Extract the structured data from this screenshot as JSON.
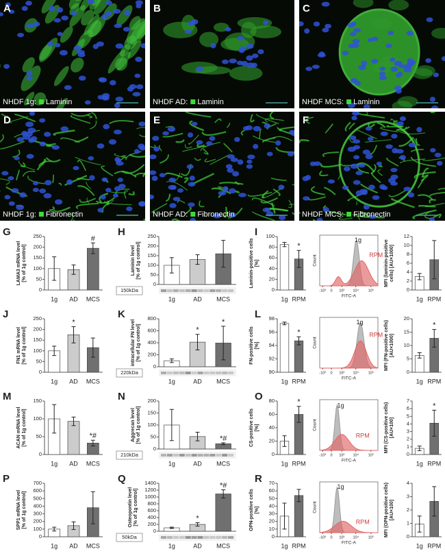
{
  "microscopy": [
    {
      "label": "A",
      "cell_line": "NHDF 1g:",
      "stain": "Laminin"
    },
    {
      "label": "B",
      "cell_line": "NHDF AD:",
      "stain": "Laminin"
    },
    {
      "label": "C",
      "cell_line": "NHDF MCS:",
      "stain": "Laminin"
    },
    {
      "label": "D",
      "cell_line": "NHDF 1g:",
      "stain": "Fibronectin"
    },
    {
      "label": "E",
      "cell_line": "NHDF AD:",
      "stain": "Fibronectin"
    },
    {
      "label": "F",
      "cell_line": "NHDF MCS:",
      "stain": "Fibronectin"
    }
  ],
  "chart_data": [
    {
      "type": "bar",
      "label": "G",
      "ylabel": [
        "LAMA3 mRNA level",
        "[% of 1g control]"
      ],
      "categories": [
        "1g",
        "AD",
        "MCS"
      ],
      "values": [
        100,
        95,
        195
      ],
      "errors": [
        55,
        22,
        25
      ],
      "marks": [
        null,
        null,
        "#"
      ],
      "colors": [
        "#ffffff",
        "#cccccc",
        "#707070"
      ],
      "ylim": [
        0,
        250
      ],
      "yticks": [
        0,
        50,
        100,
        150,
        200,
        250
      ]
    },
    {
      "type": "bar",
      "label": "H",
      "ylabel": [
        "Laminin level",
        "[% of 1g control]"
      ],
      "categories": [
        "1g",
        "AD",
        "MCS"
      ],
      "values": [
        100,
        130,
        160
      ],
      "errors": [
        40,
        25,
        70
      ],
      "marks": [
        null,
        null,
        null
      ],
      "colors": [
        "#ffffff",
        "#cccccc",
        "#707070"
      ],
      "ylim": [
        0,
        250
      ],
      "yticks": [
        0,
        50,
        100,
        150,
        200,
        250
      ],
      "blot_label": "150kDa"
    },
    {
      "type": "bar",
      "label": "I",
      "ylabel": [
        "Laminin-positive cells",
        "[%]"
      ],
      "categories": [
        "1g",
        "RPM"
      ],
      "values": [
        85,
        58
      ],
      "errors": [
        4,
        16
      ],
      "marks": [
        null,
        "*"
      ],
      "colors": [
        "#ffffff",
        "#707070"
      ],
      "ylim": [
        0,
        100
      ],
      "yticks": [
        0,
        20,
        40,
        60,
        80,
        100
      ]
    },
    {
      "type": "flow_histogram",
      "ylabel": "Count",
      "xlabel": "FITC-A",
      "xtick_labels": [
        "-10³",
        "0",
        "10³",
        "10⁴",
        "10⁵"
      ],
      "series": [
        {
          "name": "1g",
          "color": "#9a9a9a"
        },
        {
          "name": "RPM",
          "color": "#e06666"
        }
      ]
    },
    {
      "type": "bar",
      "ylabel": [
        "MFI (laminin-positive",
        "cells) [AU×1000]"
      ],
      "categories": [
        "1g",
        "RPM"
      ],
      "values": [
        3,
        6.8
      ],
      "errors": [
        0.7,
        4.3
      ],
      "marks": [
        null,
        null
      ],
      "colors": [
        "#ffffff",
        "#707070"
      ],
      "ylim": [
        0,
        12
      ],
      "yticks": [
        0,
        2,
        4,
        6,
        8,
        10,
        12
      ]
    },
    {
      "type": "bar",
      "label": "J",
      "ylabel": [
        "FN1 mRNA level",
        "[% of 1g control]"
      ],
      "categories": [
        "1g",
        "AD",
        "MCS"
      ],
      "values": [
        100,
        175,
        115
      ],
      "errors": [
        22,
        38,
        45
      ],
      "marks": [
        null,
        "*",
        null
      ],
      "colors": [
        "#ffffff",
        "#cccccc",
        "#707070"
      ],
      "ylim": [
        0,
        250
      ],
      "yticks": [
        0,
        50,
        100,
        150,
        200,
        250
      ]
    },
    {
      "type": "bar",
      "label": "K",
      "ylabel": [
        "intracellular FN level",
        "[% of 1g control]"
      ],
      "categories": [
        "1g",
        "AD",
        "MCS"
      ],
      "values": [
        100,
        410,
        395
      ],
      "errors": [
        30,
        130,
        280
      ],
      "marks": [
        null,
        "*",
        "*"
      ],
      "colors": [
        "#ffffff",
        "#cccccc",
        "#707070"
      ],
      "ylim": [
        0,
        800
      ],
      "yticks": [
        0,
        200,
        400,
        600,
        800
      ],
      "blot_label": "220kDa"
    },
    {
      "type": "bar",
      "label": "L",
      "ylabel": [
        "FN-positive cells",
        "[%]"
      ],
      "categories": [
        "1g",
        "RPM"
      ],
      "values": [
        97.3,
        94.7
      ],
      "errors": [
        0.2,
        0.6
      ],
      "marks": [
        null,
        "*"
      ],
      "colors": [
        "#ffffff",
        "#707070"
      ],
      "ylim": [
        90,
        98
      ],
      "yticks": [
        90,
        92,
        94,
        96,
        98
      ]
    },
    {
      "type": "flow_histogram",
      "ylabel": "Count",
      "xlabel": "FITC-A",
      "xtick_labels": [
        "-10³",
        "0",
        "10³",
        "10⁴",
        "10⁵"
      ],
      "series": [
        {
          "name": "1g",
          "color": "#9a9a9a"
        },
        {
          "name": "RPM",
          "color": "#e06666"
        }
      ]
    },
    {
      "type": "bar",
      "ylabel": [
        "MFI (FN-positive cells)",
        "[AU×1000]"
      ],
      "categories": [
        "1g",
        "RPM"
      ],
      "values": [
        6.3,
        12.7
      ],
      "errors": [
        1,
        3.3
      ],
      "marks": [
        null,
        "*"
      ],
      "colors": [
        "#ffffff",
        "#707070"
      ],
      "ylim": [
        0,
        20
      ],
      "yticks": [
        0,
        5,
        10,
        15,
        20
      ]
    },
    {
      "type": "bar",
      "label": "M",
      "ylabel": [
        "ACAN mRNA level",
        "[% of 1g control]"
      ],
      "categories": [
        "1g",
        "AD",
        "MCS"
      ],
      "values": [
        100,
        93,
        32
      ],
      "errors": [
        40,
        12,
        8
      ],
      "marks": [
        null,
        null,
        "*#"
      ],
      "colors": [
        "#ffffff",
        "#cccccc",
        "#707070"
      ],
      "ylim": [
        0,
        150
      ],
      "yticks": [
        0,
        50,
        100,
        150
      ]
    },
    {
      "type": "bar",
      "label": "N",
      "ylabel": [
        "Aggrecan level",
        "[% of 1g control]"
      ],
      "categories": [
        "1g",
        "AD",
        "MCS"
      ],
      "values": [
        100,
        52,
        22
      ],
      "errors": [
        65,
        18,
        4
      ],
      "marks": [
        null,
        null,
        "*#"
      ],
      "colors": [
        "#ffffff",
        "#cccccc",
        "#707070"
      ],
      "ylim": [
        0,
        200
      ],
      "yticks": [
        0,
        50,
        100,
        150,
        200
      ],
      "blot_label": "210kDa"
    },
    {
      "type": "bar",
      "label": "O",
      "ylabel": [
        "CS-positive cells",
        "[%]"
      ],
      "categories": [
        "1g",
        "RPM"
      ],
      "values": [
        20,
        60
      ],
      "errors": [
        8,
        12
      ],
      "marks": [
        null,
        "*"
      ],
      "colors": [
        "#ffffff",
        "#707070"
      ],
      "ylim": [
        0,
        80
      ],
      "yticks": [
        0,
        20,
        40,
        60,
        80
      ]
    },
    {
      "type": "flow_histogram",
      "ylabel": "Count",
      "xlabel": "FITC-A",
      "xtick_labels": [
        "-10³",
        "0",
        "10³",
        "10⁴",
        "10⁵"
      ],
      "series": [
        {
          "name": "1g",
          "color": "#9a9a9a"
        },
        {
          "name": "RPM",
          "color": "#e06666"
        }
      ]
    },
    {
      "type": "bar",
      "ylabel": [
        "MFI (CS-positive cells)",
        "[AU×100]"
      ],
      "categories": [
        "1g",
        "RPM"
      ],
      "values": [
        0.8,
        4.1
      ],
      "errors": [
        0.3,
        1.7
      ],
      "marks": [
        null,
        "*"
      ],
      "colors": [
        "#ffffff",
        "#707070"
      ],
      "ylim": [
        0,
        7
      ],
      "yticks": [
        0,
        1,
        2,
        3,
        4,
        5,
        6,
        7
      ]
    },
    {
      "type": "bar",
      "label": "P",
      "ylabel": [
        "SPP1 mRNA level",
        "[% of 1g control]"
      ],
      "categories": [
        "1g",
        "AD",
        "MCS"
      ],
      "values": [
        100,
        145,
        380
      ],
      "errors": [
        25,
        50,
        210
      ],
      "marks": [
        null,
        null,
        null
      ],
      "colors": [
        "#ffffff",
        "#cccccc",
        "#707070"
      ],
      "ylim": [
        0,
        700
      ],
      "yticks": [
        0,
        100,
        200,
        300,
        400,
        500,
        600,
        700
      ]
    },
    {
      "type": "bar",
      "label": "Q",
      "ylabel": [
        "Osteopontin level",
        "[% of 1g control]"
      ],
      "categories": [
        "1g",
        "AD",
        "MCS"
      ],
      "values": [
        100,
        200,
        1090
      ],
      "errors": [
        20,
        50,
        120
      ],
      "marks": [
        null,
        "*",
        "*#"
      ],
      "colors": [
        "#ffffff",
        "#cccccc",
        "#707070"
      ],
      "ylim": [
        0,
        1400
      ],
      "yticks": [
        0,
        200,
        400,
        600,
        800,
        1000,
        1200,
        1400
      ],
      "blot_label": "50kDa"
    },
    {
      "type": "bar",
      "label": "R",
      "ylabel": [
        "OPN-positive cells",
        "[%]"
      ],
      "categories": [
        "1g",
        "RPM"
      ],
      "values": [
        27,
        54
      ],
      "errors": [
        17,
        8
      ],
      "marks": [
        null,
        null
      ],
      "colors": [
        "#ffffff",
        "#707070"
      ],
      "ylim": [
        0,
        70
      ],
      "yticks": [
        0,
        10,
        20,
        30,
        40,
        50,
        60,
        70
      ]
    },
    {
      "type": "flow_histogram",
      "ylabel": "Count",
      "xlabel": "FITC-A",
      "xtick_labels": [
        "-10³",
        "0",
        "10³",
        "10⁴",
        "10⁵"
      ],
      "series": [
        {
          "name": "1g",
          "color": "#9a9a9a"
        },
        {
          "name": "RPM",
          "color": "#e06666"
        }
      ]
    },
    {
      "type": "bar",
      "ylabel": [
        "MFI (OPN-positive cells)",
        "[AU×100]"
      ],
      "categories": [
        "1g",
        "RPM"
      ],
      "values": [
        0.95,
        2.65
      ],
      "errors": [
        0.6,
        1.1
      ],
      "marks": [
        null,
        null
      ],
      "colors": [
        "#ffffff",
        "#707070"
      ],
      "ylim": [
        0,
        4
      ],
      "yticks": [
        0,
        1,
        2,
        3,
        4
      ]
    }
  ]
}
